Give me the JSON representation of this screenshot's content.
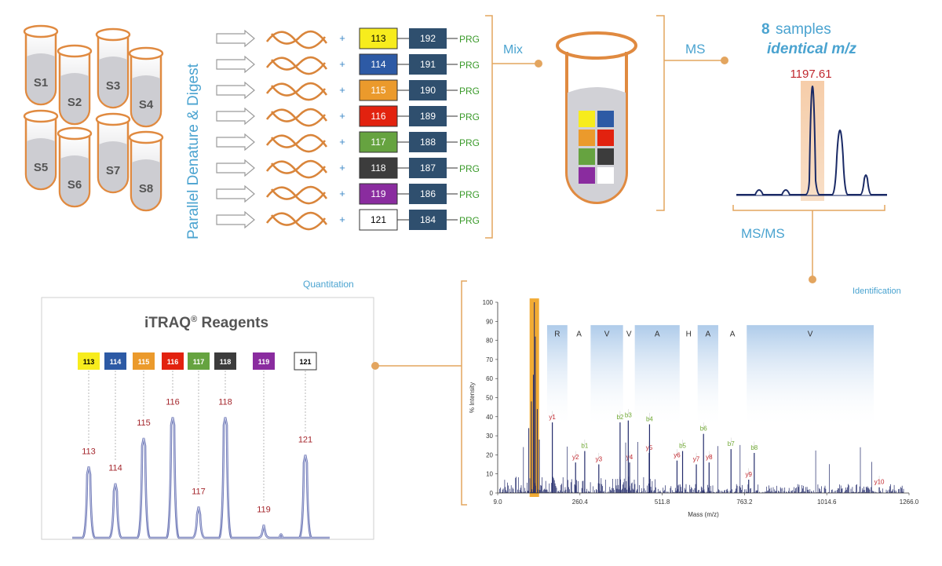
{
  "tubes": [
    {
      "label": "S1"
    },
    {
      "label": "S2"
    },
    {
      "label": "S3"
    },
    {
      "label": "S4"
    },
    {
      "label": "S5"
    },
    {
      "label": "S6"
    },
    {
      "label": "S7"
    },
    {
      "label": "S8"
    }
  ],
  "vertical_label": "Parallel  Denature  &  Digest",
  "reagents": [
    {
      "reporter": "113",
      "balance": "192",
      "group": "PRG",
      "color": "#f7ec1d",
      "text_color": "#000000"
    },
    {
      "reporter": "114",
      "balance": "191",
      "group": "PRG",
      "color": "#2d5aa5",
      "text_color": "#ffffff"
    },
    {
      "reporter": "115",
      "balance": "190",
      "group": "PRG",
      "color": "#eb9a2c",
      "text_color": "#ffffff"
    },
    {
      "reporter": "116",
      "balance": "189",
      "group": "PRG",
      "color": "#e2220f",
      "text_color": "#ffffff"
    },
    {
      "reporter": "117",
      "balance": "188",
      "group": "PRG",
      "color": "#66a340",
      "text_color": "#ffffff"
    },
    {
      "reporter": "118",
      "balance": "187",
      "group": "PRG",
      "color": "#3c3c3c",
      "text_color": "#ffffff"
    },
    {
      "reporter": "119",
      "balance": "186",
      "group": "PRG",
      "color": "#8a2c9f",
      "text_color": "#ffffff"
    },
    {
      "reporter": "121",
      "balance": "184",
      "group": "PRG",
      "color": "#ffffff",
      "text_color": "#000000"
    }
  ],
  "balance_color": "#2f4f6e",
  "mix_label": "Mix",
  "ms_label": "MS",
  "msms_label": "MS/MS",
  "samples_heading": {
    "count": "8",
    "word": "samples",
    "sub": "identical m/z"
  },
  "ms_peak_label": "1197.61",
  "quantitation_label": "Quantitation",
  "identification_label": "Identification",
  "quant_panel": {
    "title": "iTRAQ",
    "reg": "®",
    "title_rest": " Reagents",
    "legend": [
      "113",
      "114",
      "115",
      "116",
      "117",
      "118",
      "119",
      "121"
    ],
    "peaks": [
      {
        "label": "113",
        "height": 0.55
      },
      {
        "label": "114",
        "height": 0.42
      },
      {
        "label": "115",
        "height": 0.77
      },
      {
        "label": "116",
        "height": 0.93
      },
      {
        "label": "117",
        "height": 0.24
      },
      {
        "label": "118",
        "height": 0.93
      },
      {
        "label": "119",
        "height": 0.1
      },
      {
        "label": "121",
        "height": 0.64
      }
    ]
  },
  "chart_data": {
    "type": "line",
    "title": "",
    "xlabel": "Mass (m/z)",
    "ylabel": "% Intensity",
    "xlim": [
      9.0,
      1266.0
    ],
    "ylim": [
      0,
      100
    ],
    "x_ticks": [
      "9.0",
      "260.4",
      "511.8",
      "763.2",
      "1014.6",
      "1266.0"
    ],
    "y_ticks": [
      "0",
      "10",
      "20",
      "30",
      "40",
      "50",
      "60",
      "70",
      "80",
      "90",
      "100"
    ],
    "highlight_mass": 121,
    "sequence": [
      {
        "aa": "R",
        "from": 160,
        "to": 222,
        "shaded": true
      },
      {
        "aa": "A",
        "from": 222,
        "to": 293,
        "shaded": false
      },
      {
        "aa": "V",
        "from": 293,
        "to": 392,
        "shaded": true
      },
      {
        "aa": "V",
        "from": 392,
        "to": 428,
        "shaded": false
      },
      {
        "aa": "A",
        "from": 428,
        "to": 565,
        "shaded": true
      },
      {
        "aa": "H",
        "from": 565,
        "to": 620,
        "shaded": false
      },
      {
        "aa": "A",
        "from": 620,
        "to": 683,
        "shaded": true
      },
      {
        "aa": "A",
        "from": 683,
        "to": 770,
        "shaded": false
      },
      {
        "aa": "V",
        "from": 770,
        "to": 1158,
        "shaded": true
      }
    ],
    "ions": [
      {
        "label": "y1",
        "mass": 176,
        "intensity": 37,
        "type": "y"
      },
      {
        "label": "y2",
        "mass": 247,
        "intensity": 16,
        "type": "y"
      },
      {
        "label": "b1",
        "mass": 275,
        "intensity": 22,
        "type": "b"
      },
      {
        "label": "y3",
        "mass": 318,
        "intensity": 15,
        "type": "y"
      },
      {
        "label": "b2",
        "mass": 383,
        "intensity": 37,
        "type": "b"
      },
      {
        "label": "y4",
        "mass": 412,
        "intensity": 16,
        "type": "y"
      },
      {
        "label": "b3",
        "mass": 408,
        "intensity": 38,
        "type": "b"
      },
      {
        "label": "y5",
        "mass": 472,
        "intensity": 21,
        "type": "y"
      },
      {
        "label": "b4",
        "mass": 473,
        "intensity": 36,
        "type": "b"
      },
      {
        "label": "y6",
        "mass": 557,
        "intensity": 17,
        "type": "y"
      },
      {
        "label": "b5",
        "mass": 574,
        "intensity": 22,
        "type": "b"
      },
      {
        "label": "b6",
        "mass": 638,
        "intensity": 31,
        "type": "b"
      },
      {
        "label": "y7",
        "mass": 616,
        "intensity": 15,
        "type": "y"
      },
      {
        "label": "y8",
        "mass": 655,
        "intensity": 16,
        "type": "y"
      },
      {
        "label": "b7",
        "mass": 722,
        "intensity": 23,
        "type": "b"
      },
      {
        "label": "y9",
        "mass": 776,
        "intensity": 7,
        "type": "y"
      },
      {
        "label": "b8",
        "mass": 793,
        "intensity": 21,
        "type": "b"
      },
      {
        "label": "y10",
        "mass": 1175,
        "intensity": 3,
        "type": "y"
      }
    ]
  }
}
